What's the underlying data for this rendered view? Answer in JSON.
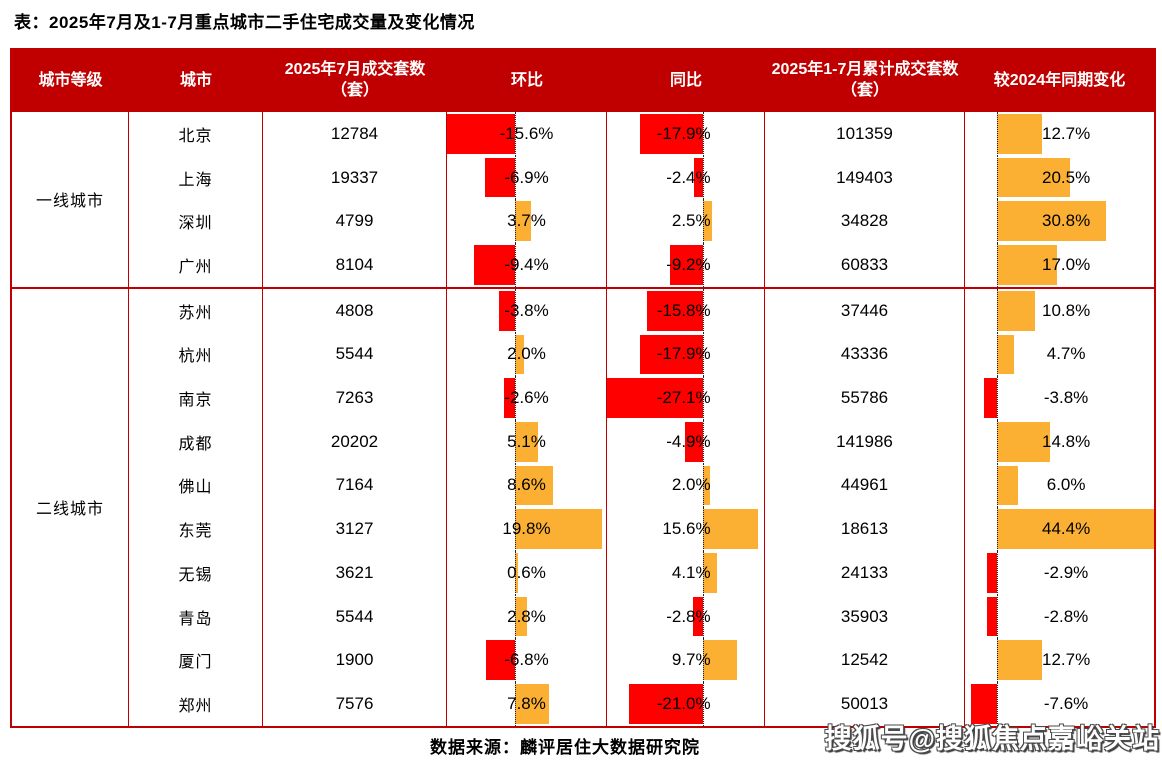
{
  "title": "表：2025年7月及1-7月重点城市二手住宅成交量及变化情况",
  "footer": {
    "source": "数据来源：麟评居住大数据研究院"
  },
  "watermark": "搜狐号@搜狐焦点嘉峪关站",
  "colors": {
    "header_bg": "#c00000",
    "table_border": "#c00000",
    "negative_bar": "#ff0000",
    "positive_bar": "#fbb034",
    "header_text": "#ffffff",
    "body_text": "#000000"
  },
  "table": {
    "headers": [
      "城市等级",
      "城市",
      "2025年7月成交套数（套）",
      "环比",
      "同比",
      "2025年1-7月累计成交套数（套）",
      "较2024年同期变化"
    ],
    "groups": [
      {
        "tier": "一线城市",
        "rows": [
          {
            "city": "北京",
            "jul": "12784",
            "mom": -15.6,
            "yoy": -17.9,
            "cum": "101359",
            "vs2024": 12.7
          },
          {
            "city": "上海",
            "jul": "19337",
            "mom": -6.9,
            "yoy": -2.4,
            "cum": "149403",
            "vs2024": 20.5
          },
          {
            "city": "深圳",
            "jul": "4799",
            "mom": 3.7,
            "yoy": 2.5,
            "cum": "34828",
            "vs2024": 30.8
          },
          {
            "city": "广州",
            "jul": "8104",
            "mom": -9.4,
            "yoy": -9.2,
            "cum": "60833",
            "vs2024": 17.0
          }
        ]
      },
      {
        "tier": "二线城市",
        "rows": [
          {
            "city": "苏州",
            "jul": "4808",
            "mom": -3.8,
            "yoy": -15.8,
            "cum": "37446",
            "vs2024": 10.8
          },
          {
            "city": "杭州",
            "jul": "5544",
            "mom": 2.0,
            "yoy": -17.9,
            "cum": "43336",
            "vs2024": 4.7
          },
          {
            "city": "南京",
            "jul": "7263",
            "mom": -2.6,
            "yoy": -27.1,
            "cum": "55786",
            "vs2024": -3.8
          },
          {
            "city": "成都",
            "jul": "20202",
            "mom": 5.1,
            "yoy": -4.9,
            "cum": "141986",
            "vs2024": 14.8
          },
          {
            "city": "佛山",
            "jul": "7164",
            "mom": 8.6,
            "yoy": 2.0,
            "cum": "44961",
            "vs2024": 6.0
          },
          {
            "city": "东莞",
            "jul": "3127",
            "mom": 19.8,
            "yoy": 15.6,
            "cum": "18613",
            "vs2024": 44.4
          },
          {
            "city": "无锡",
            "jul": "3621",
            "mom": 0.6,
            "yoy": 4.1,
            "cum": "24133",
            "vs2024": -2.9
          },
          {
            "city": "青岛",
            "jul": "5544",
            "mom": 2.8,
            "yoy": -2.8,
            "cum": "35903",
            "vs2024": -2.8
          },
          {
            "city": "厦门",
            "jul": "1900",
            "mom": -6.8,
            "yoy": 9.7,
            "cum": "12542",
            "vs2024": 12.7
          },
          {
            "city": "郑州",
            "jul": "7576",
            "mom": 7.8,
            "yoy": -21.0,
            "cum": "50013",
            "vs2024": -7.6
          }
        ]
      }
    ]
  },
  "chart_data": {
    "type": "table",
    "title": "表：2025年7月及1-7月重点城市二手住宅成交量及变化情况",
    "columns": [
      "城市等级",
      "城市",
      "2025年7月成交套数（套）",
      "环比(%)",
      "同比(%)",
      "2025年1-7月累计成交套数（套）",
      "较2024年同期变化(%)"
    ],
    "rows": [
      [
        "一线城市",
        "北京",
        12784,
        -15.6,
        -17.9,
        101359,
        12.7
      ],
      [
        "一线城市",
        "上海",
        19337,
        -6.9,
        -2.4,
        149403,
        20.5
      ],
      [
        "一线城市",
        "深圳",
        4799,
        3.7,
        2.5,
        34828,
        30.8
      ],
      [
        "一线城市",
        "广州",
        8104,
        -9.4,
        -9.2,
        60833,
        17.0
      ],
      [
        "二线城市",
        "苏州",
        4808,
        -3.8,
        -15.8,
        37446,
        10.8
      ],
      [
        "二线城市",
        "杭州",
        5544,
        2.0,
        -17.9,
        43336,
        4.7
      ],
      [
        "二线城市",
        "南京",
        7263,
        -2.6,
        -27.1,
        55786,
        -3.8
      ],
      [
        "二线城市",
        "成都",
        20202,
        5.1,
        -4.9,
        141986,
        14.8
      ],
      [
        "二线城市",
        "佛山",
        7164,
        8.6,
        2.0,
        44961,
        6.0
      ],
      [
        "二线城市",
        "东莞",
        3127,
        19.8,
        15.6,
        18613,
        44.4
      ],
      [
        "二线城市",
        "无锡",
        3621,
        0.6,
        4.1,
        24133,
        -2.9
      ],
      [
        "二线城市",
        "青岛",
        5544,
        2.8,
        -2.8,
        35903,
        -2.8
      ],
      [
        "二线城市",
        "厦门",
        1900,
        -6.8,
        9.7,
        12542,
        12.7
      ],
      [
        "二线城市",
        "郑州",
        7576,
        7.8,
        -21.0,
        50013,
        -7.6
      ]
    ],
    "bar_columns": [
      {
        "column": "环比(%)",
        "negative_color": "#ff0000",
        "positive_color": "#fbb034"
      },
      {
        "column": "同比(%)",
        "negative_color": "#ff0000",
        "positive_color": "#fbb034"
      },
      {
        "column": "较2024年同期变化(%)",
        "negative_color": "#ff0000",
        "positive_color": "#fbb034"
      }
    ],
    "source_note": "数据来源：麟评居住大数据研究院"
  }
}
